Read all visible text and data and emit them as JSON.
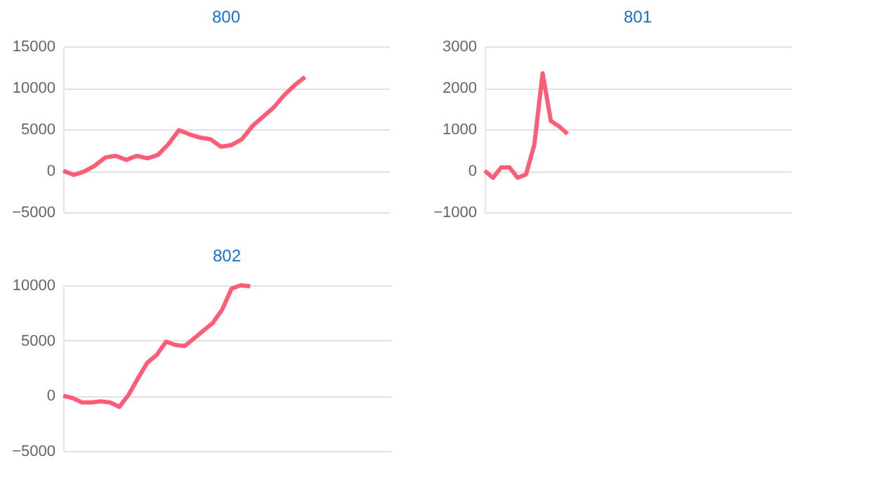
{
  "chart_data": [
    {
      "type": "line",
      "title": "800",
      "categories": [
        null,
        null,
        null,
        null,
        null,
        null,
        null,
        null,
        null,
        null,
        null,
        null,
        null,
        null,
        null,
        null,
        null,
        null,
        null,
        null,
        null,
        null,
        null,
        null,
        null,
        null,
        null,
        null,
        null,
        null,
        null,
        null
      ],
      "series": [
        {
          "color": "#ff5c77",
          "values": [
            0,
            -500,
            -100,
            600,
            1600,
            1800,
            1300,
            1800,
            1500,
            1900,
            3200,
            4900,
            4400,
            4000,
            3800,
            2900,
            3100,
            3800,
            5400,
            6500,
            7600,
            9100,
            10300,
            11300,
            null,
            null,
            null,
            null,
            null,
            null,
            null,
            null
          ]
        }
      ],
      "ylim": [
        -5000,
        15000
      ],
      "yticks": [
        -5000,
        0,
        5000,
        10000,
        15000
      ],
      "grid": "y",
      "tick_labels": "y"
    },
    {
      "type": "line",
      "title": "801",
      "categories": [
        null,
        null,
        null,
        null,
        null,
        null,
        null,
        null,
        null,
        null,
        null,
        null,
        null,
        null,
        null,
        null,
        null,
        null,
        null,
        null,
        null,
        null,
        null,
        null,
        null,
        null,
        null,
        null,
        null,
        null,
        null,
        null,
        null,
        null,
        null,
        null,
        null,
        null
      ],
      "series": [
        {
          "color": "#ff5c77",
          "values": [
            0,
            -170,
            80,
            80,
            -170,
            -90,
            630,
            2350,
            1200,
            1070,
            890,
            null,
            null,
            null,
            null,
            null,
            null,
            null,
            null,
            null,
            null,
            null,
            null,
            null,
            null,
            null,
            null,
            null,
            null,
            null,
            null,
            null,
            null,
            null,
            null,
            null,
            null,
            null
          ]
        }
      ],
      "ylim": [
        -1000,
        3000
      ],
      "yticks": [
        -1000,
        0,
        1000,
        2000,
        3000
      ],
      "grid": "y",
      "tick_labels": "y"
    },
    {
      "type": "line",
      "title": "802",
      "categories": [
        null,
        null,
        null,
        null,
        null,
        null,
        null,
        null,
        null,
        null,
        null,
        null,
        null,
        null,
        null,
        null,
        null,
        null,
        null,
        null,
        null,
        null,
        null,
        null,
        null,
        null,
        null,
        null,
        null,
        null,
        null,
        null,
        null,
        null,
        null,
        null
      ],
      "series": [
        {
          "color": "#ff5c77",
          "values": [
            0,
            -200,
            -600,
            -600,
            -500,
            -600,
            -1000,
            100,
            1600,
            3000,
            3700,
            4900,
            4600,
            4500,
            5200,
            5900,
            6600,
            7800,
            9700,
            10000,
            9900,
            null,
            null,
            null,
            null,
            null,
            null,
            null,
            null,
            null,
            null,
            null,
            null,
            null,
            null,
            null
          ]
        }
      ],
      "ylim": [
        -5000,
        10000
      ],
      "yticks": [
        -5000,
        0,
        5000,
        10000
      ],
      "grid": "y",
      "tick_labels": "y"
    }
  ]
}
